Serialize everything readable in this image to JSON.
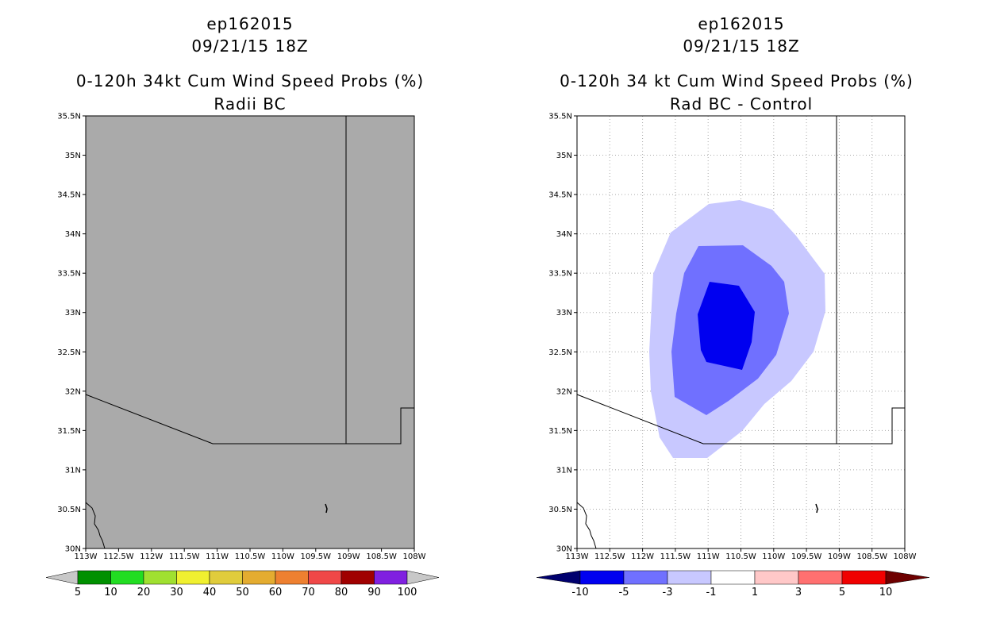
{
  "left_panel": {
    "storm_id": "ep162015",
    "datetime": "09/21/15 18Z",
    "product": "0-120h 34kt Cum Wind Speed Probs (%)",
    "subtitle": "Radii BC",
    "fill_color": "#aaaaaa",
    "colorbar": {
      "labels": [
        "5",
        "10",
        "20",
        "30",
        "40",
        "50",
        "60",
        "70",
        "80",
        "90",
        "100"
      ],
      "colors": [
        "#c8c8c8",
        "#009000",
        "#22dd22",
        "#a0e030",
        "#f0f030",
        "#e0cc3c",
        "#e4ac30",
        "#ee8030",
        "#f04848",
        "#a00000",
        "#8020e0",
        "#c8c8c8"
      ]
    }
  },
  "right_panel": {
    "storm_id": "ep162015",
    "datetime": "09/21/15 18Z",
    "product": "0-120h 34 kt Cum Wind Speed Probs (%)",
    "subtitle": "Rad BC - Control",
    "contour_colors": {
      "minus1_to_minus3": "#c8c8ff",
      "minus3_to_minus5": "#7070ff",
      "minus5_to_minus10": "#0000f0"
    },
    "colorbar": {
      "labels": [
        "-10",
        "-5",
        "-3",
        "-1",
        "1",
        "3",
        "5",
        "10"
      ],
      "colors": [
        "#00006e",
        "#0000f0",
        "#7070ff",
        "#c8c8ff",
        "#ffffff",
        "#ffc8c8",
        "#ff7070",
        "#f00000",
        "#6e0000"
      ]
    }
  },
  "axes": {
    "lat_labels": [
      "30N",
      "30.5N",
      "31N",
      "31.5N",
      "32N",
      "32.5N",
      "33N",
      "33.5N",
      "34N",
      "34.5N",
      "35N",
      "35.5N"
    ],
    "lon_labels": [
      "113W",
      "112.5W",
      "112W",
      "111.5W",
      "111W",
      "110.5W",
      "110W",
      "109.5W",
      "109W",
      "108.5W",
      "108W"
    ]
  }
}
